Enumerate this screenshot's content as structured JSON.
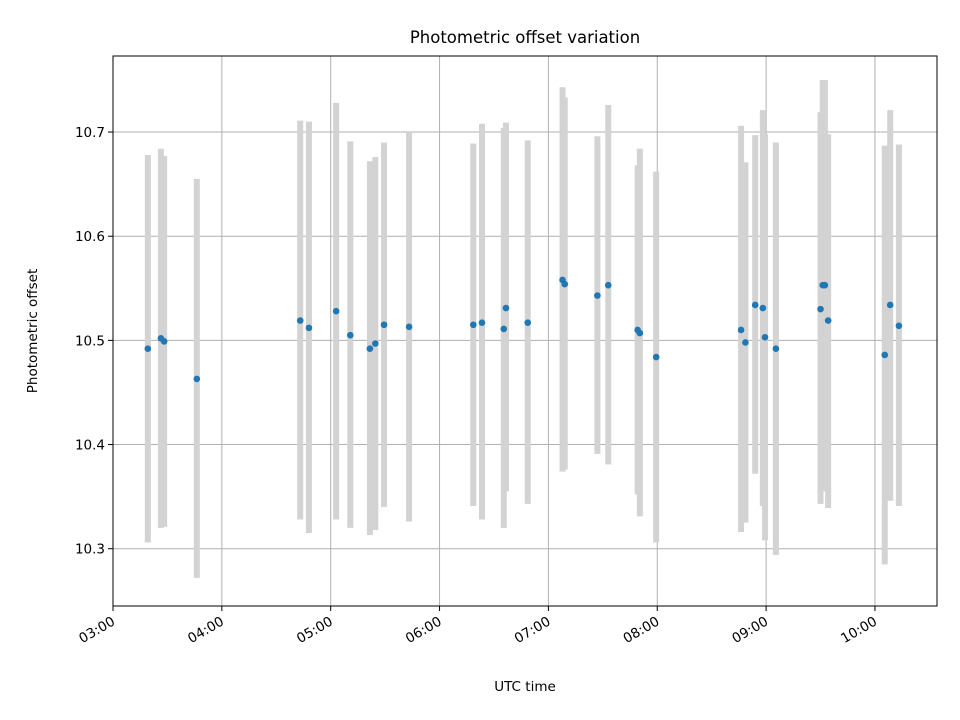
{
  "chart_data": {
    "type": "scatter",
    "title": "Photometric offset variation",
    "xlabel": "UTC time",
    "ylabel": "Photometric offset",
    "x_unit": "UTC hour",
    "xlim": [
      3.0,
      10.57
    ],
    "ylim": [
      10.245,
      10.773
    ],
    "grid": true,
    "x_ticks": [
      {
        "value": 3.0,
        "label": "03:00"
      },
      {
        "value": 4.0,
        "label": "04:00"
      },
      {
        "value": 5.0,
        "label": "05:00"
      },
      {
        "value": 6.0,
        "label": "06:00"
      },
      {
        "value": 7.0,
        "label": "07:00"
      },
      {
        "value": 8.0,
        "label": "08:00"
      },
      {
        "value": 9.0,
        "label": "09:00"
      },
      {
        "value": 10.0,
        "label": "10:00"
      }
    ],
    "y_ticks": [
      {
        "value": 10.3,
        "label": "10.3"
      },
      {
        "value": 10.4,
        "label": "10.4"
      },
      {
        "value": 10.5,
        "label": "10.5"
      },
      {
        "value": 10.6,
        "label": "10.6"
      },
      {
        "value": 10.7,
        "label": "10.7"
      }
    ],
    "errorbar_color": "#d3d3d3",
    "marker_color": "#1f77b4",
    "points": [
      {
        "x": 3.32,
        "y": 10.492,
        "lo": 10.306,
        "hi": 10.678
      },
      {
        "x": 3.44,
        "y": 10.502,
        "lo": 10.32,
        "hi": 10.684
      },
      {
        "x": 3.47,
        "y": 10.499,
        "lo": 10.321,
        "hi": 10.677
      },
      {
        "x": 3.77,
        "y": 10.463,
        "lo": 10.272,
        "hi": 10.655
      },
      {
        "x": 4.72,
        "y": 10.519,
        "lo": 10.328,
        "hi": 10.711
      },
      {
        "x": 4.8,
        "y": 10.512,
        "lo": 10.315,
        "hi": 10.71
      },
      {
        "x": 5.05,
        "y": 10.528,
        "lo": 10.328,
        "hi": 10.728
      },
      {
        "x": 5.18,
        "y": 10.505,
        "lo": 10.32,
        "hi": 10.691
      },
      {
        "x": 5.36,
        "y": 10.492,
        "lo": 10.313,
        "hi": 10.672
      },
      {
        "x": 5.41,
        "y": 10.497,
        "lo": 10.318,
        "hi": 10.676
      },
      {
        "x": 5.49,
        "y": 10.515,
        "lo": 10.34,
        "hi": 10.69
      },
      {
        "x": 5.72,
        "y": 10.513,
        "lo": 10.326,
        "hi": 10.7
      },
      {
        "x": 6.31,
        "y": 10.515,
        "lo": 10.341,
        "hi": 10.689
      },
      {
        "x": 6.39,
        "y": 10.517,
        "lo": 10.328,
        "hi": 10.708
      },
      {
        "x": 6.59,
        "y": 10.511,
        "lo": 10.32,
        "hi": 10.704
      },
      {
        "x": 6.61,
        "y": 10.531,
        "lo": 10.355,
        "hi": 10.709
      },
      {
        "x": 6.81,
        "y": 10.517,
        "lo": 10.343,
        "hi": 10.692
      },
      {
        "x": 7.13,
        "y": 10.558,
        "lo": 10.374,
        "hi": 10.743
      },
      {
        "x": 7.15,
        "y": 10.554,
        "lo": 10.376,
        "hi": 10.733
      },
      {
        "x": 7.45,
        "y": 10.543,
        "lo": 10.391,
        "hi": 10.696
      },
      {
        "x": 7.55,
        "y": 10.553,
        "lo": 10.381,
        "hi": 10.726
      },
      {
        "x": 7.82,
        "y": 10.51,
        "lo": 10.352,
        "hi": 10.668
      },
      {
        "x": 7.84,
        "y": 10.507,
        "lo": 10.331,
        "hi": 10.684
      },
      {
        "x": 7.99,
        "y": 10.484,
        "lo": 10.306,
        "hi": 10.662
      },
      {
        "x": 8.77,
        "y": 10.51,
        "lo": 10.316,
        "hi": 10.706
      },
      {
        "x": 8.81,
        "y": 10.498,
        "lo": 10.325,
        "hi": 10.671
      },
      {
        "x": 8.9,
        "y": 10.534,
        "lo": 10.372,
        "hi": 10.697
      },
      {
        "x": 8.97,
        "y": 10.531,
        "lo": 10.341,
        "hi": 10.721
      },
      {
        "x": 8.99,
        "y": 10.503,
        "lo": 10.308,
        "hi": 10.698
      },
      {
        "x": 9.09,
        "y": 10.492,
        "lo": 10.294,
        "hi": 10.69
      },
      {
        "x": 9.5,
        "y": 10.53,
        "lo": 10.343,
        "hi": 10.719
      },
      {
        "x": 9.52,
        "y": 10.553,
        "lo": 10.355,
        "hi": 10.75
      },
      {
        "x": 9.54,
        "y": 10.553,
        "lo": 10.357,
        "hi": 10.75
      },
      {
        "x": 9.57,
        "y": 10.519,
        "lo": 10.339,
        "hi": 10.698
      },
      {
        "x": 10.09,
        "y": 10.486,
        "lo": 10.285,
        "hi": 10.687
      },
      {
        "x": 10.14,
        "y": 10.534,
        "lo": 10.346,
        "hi": 10.721
      },
      {
        "x": 10.22,
        "y": 10.514,
        "lo": 10.341,
        "hi": 10.688
      }
    ]
  }
}
